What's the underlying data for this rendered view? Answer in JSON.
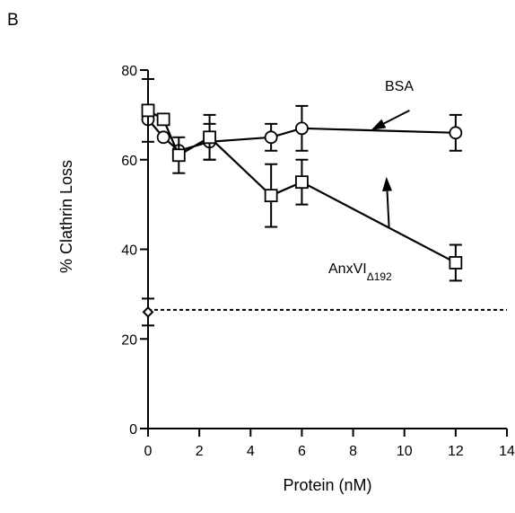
{
  "panel_label": "B",
  "chart_data": {
    "type": "line",
    "title": "",
    "xlabel": "Protein (nM)",
    "ylabel": "% Clathrin Loss",
    "xlim": [
      0,
      14
    ],
    "ylim": [
      0,
      80
    ],
    "x_ticks": [
      0,
      2,
      4,
      6,
      8,
      10,
      12,
      14
    ],
    "y_ticks": [
      0,
      20,
      40,
      60,
      80
    ],
    "grid": false,
    "series": [
      {
        "name": "BSA",
        "marker": "circle",
        "x": [
          0,
          0.6,
          1.2,
          2.4,
          4.8,
          6,
          12
        ],
        "y": [
          69,
          65,
          62,
          64,
          65,
          67,
          66
        ],
        "error": [
          0,
          0,
          0,
          4,
          3,
          5,
          4
        ]
      },
      {
        "name": "AnxVI",
        "name_subscript": "Δ192",
        "marker": "square",
        "x": [
          0,
          0.6,
          1.2,
          2.4,
          4.8,
          6,
          12
        ],
        "y": [
          71,
          69,
          61,
          65,
          52,
          55,
          37
        ],
        "error": [
          7,
          0,
          4,
          5,
          7,
          5,
          4
        ]
      }
    ],
    "control_point": {
      "marker": "diamond",
      "x": 0,
      "y": 26,
      "error": 3
    },
    "reference_line": {
      "style": "dotted",
      "y": 26.5,
      "x_range": [
        0,
        14
      ]
    },
    "annotations": [
      {
        "text": "BSA",
        "arrow_from": [
          10.2,
          71
        ],
        "arrow_to": [
          8.7,
          66.6
        ]
      },
      {
        "text": "AnxVI",
        "subscript": "Δ192",
        "arrow_from": [
          9.4,
          45
        ],
        "arrow_to": [
          9.3,
          56.2
        ]
      }
    ]
  }
}
